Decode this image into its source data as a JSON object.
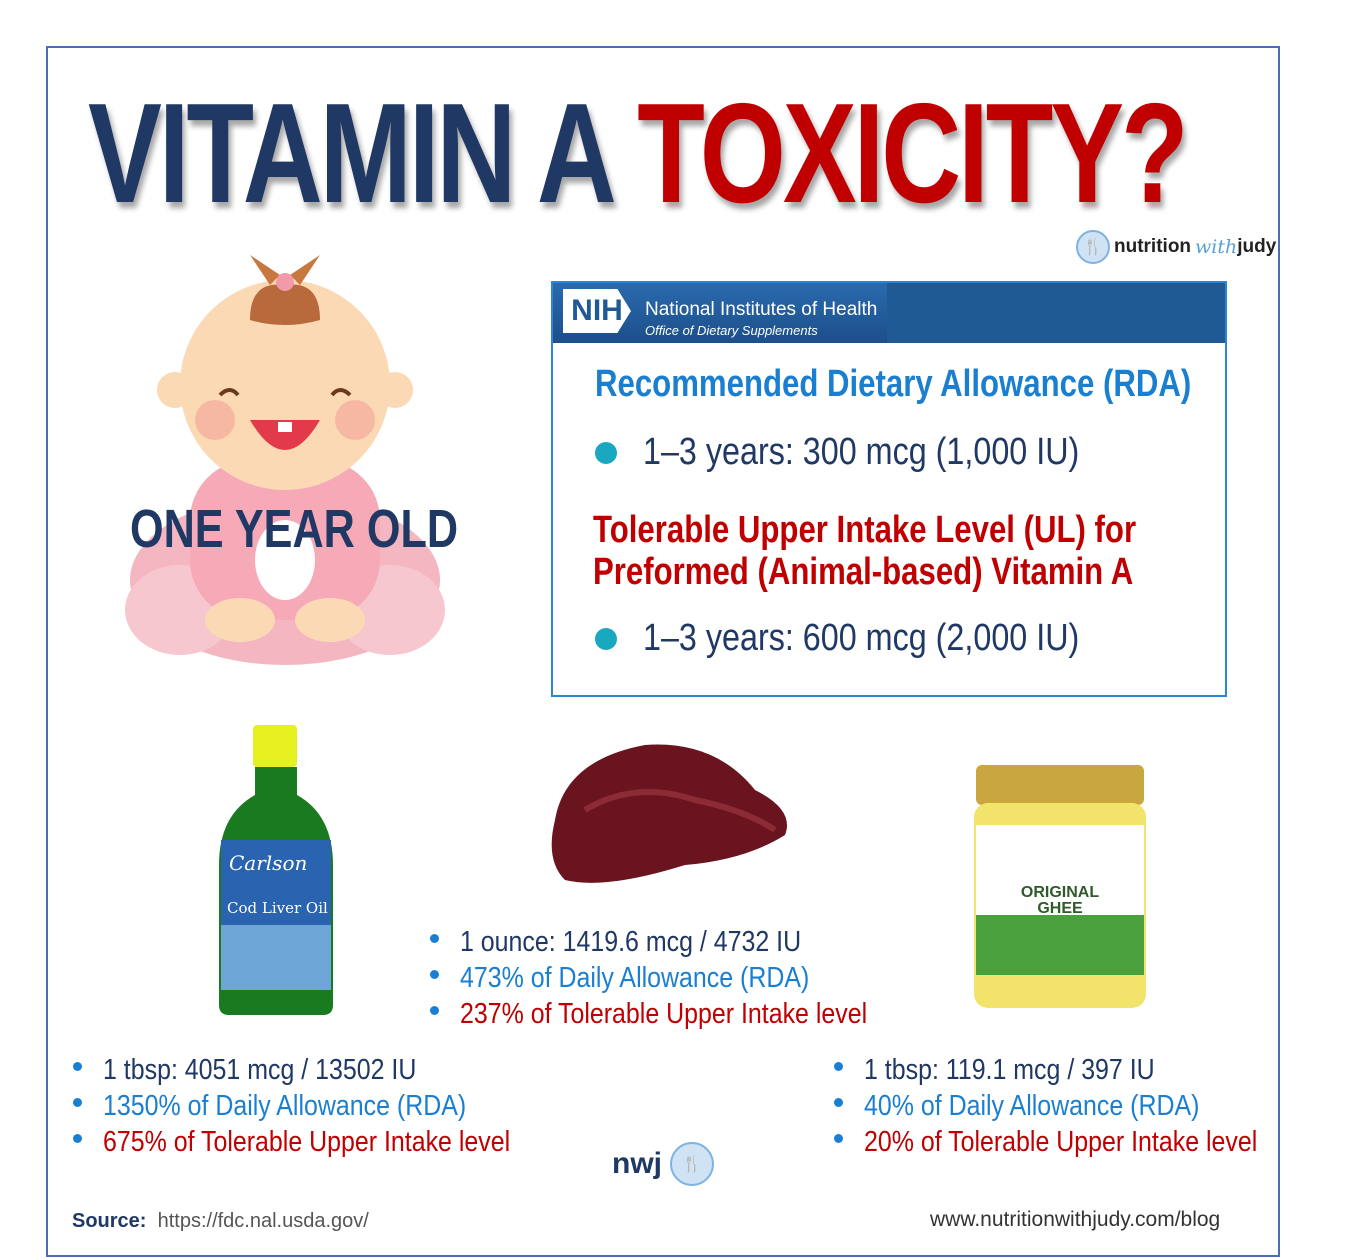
{
  "title": {
    "part1": "VITAMIN A ",
    "part2": "TOXICITY?"
  },
  "brand": {
    "pre": "nutrition",
    "mid": "with",
    "post": "judy"
  },
  "baby_label": "ONE YEAR OLD",
  "nih": {
    "logo": "NIH",
    "name": "National Institutes of Health",
    "office": "Office of Dietary Supplements",
    "rda_heading": "Recommended Dietary Allowance (RDA)",
    "rda_value": "1–3 years:  300 mcg  (1,000 IU)",
    "ul_heading_1": "Tolerable Upper Intake Level (UL) for",
    "ul_heading_2": "Preformed (Animal-based) Vitamin A",
    "ul_value": "1–3 years:  600 mcg  (2,000 IU)"
  },
  "foods": {
    "cod_liver_oil": {
      "label_brand": "Carlson",
      "label_name": "Cod Liver Oil",
      "items": [
        "1 tbsp: 4051 mcg / 13502 IU",
        "1350% of Daily Allowance (RDA)",
        "675% of Tolerable Upper Intake level"
      ]
    },
    "liver": {
      "items": [
        "1 ounce: 1419.6 mcg / 4732 IU",
        "473% of Daily Allowance (RDA)",
        "237% of Tolerable Upper Intake level"
      ]
    },
    "ghee": {
      "label_name": "ORIGINAL GHEE",
      "items": [
        "1 tbsp: 119.1 mcg / 397 IU",
        "40% of Daily Allowance (RDA)",
        "20% of Tolerable Upper Intake level"
      ]
    }
  },
  "footer": {
    "source_label": "Source:",
    "source_url": "https://fdc.nal.usda.gov/",
    "nwj": "nwj",
    "site": "www.nutritionwithjudy.com/blog"
  },
  "colors": {
    "navy": "#1f3864",
    "red": "#c00000",
    "blue": "#1a7fd1",
    "teal": "#1aa8c0"
  }
}
